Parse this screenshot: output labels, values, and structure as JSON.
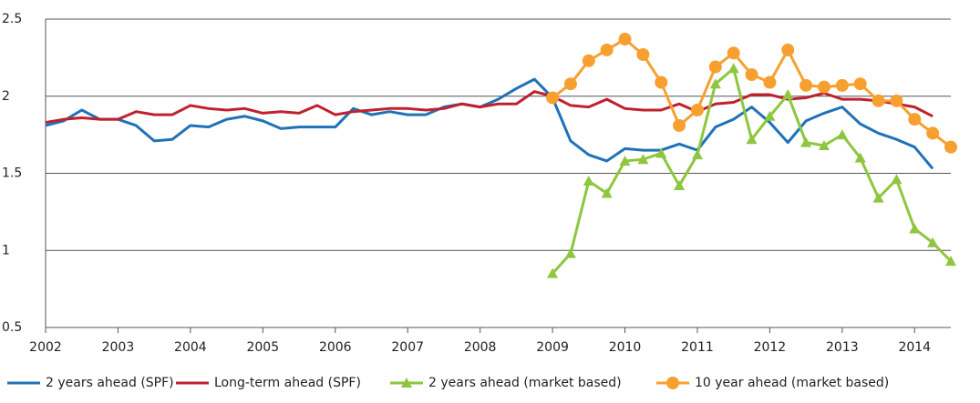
{
  "chart_data": {
    "type": "line",
    "xlim": [
      2002,
      2014.5
    ],
    "xticks": [
      2002,
      2003,
      2004,
      2005,
      2006,
      2007,
      2008,
      2009,
      2010,
      2011,
      2012,
      2013,
      2014
    ],
    "ylim": [
      0.5,
      2.5
    ],
    "yticks": [
      0.5,
      1,
      1.5,
      2,
      2.5
    ],
    "grid": true,
    "legend": "bottom",
    "series": [
      {
        "name": "2 years ahead (SPF)",
        "color": "#1f72b8",
        "marker": "none",
        "x": [
          2002,
          2002.25,
          2002.5,
          2002.75,
          2003,
          2003.25,
          2003.5,
          2003.75,
          2004,
          2004.25,
          2004.5,
          2004.75,
          2005,
          2005.25,
          2005.5,
          2005.75,
          2006,
          2006.25,
          2006.5,
          2006.75,
          2007,
          2007.25,
          2007.5,
          2007.75,
          2008,
          2008.25,
          2008.5,
          2008.75,
          2009,
          2009.25,
          2009.5,
          2009.75,
          2010,
          2010.25,
          2010.5,
          2010.75,
          2011,
          2011.25,
          2011.5,
          2011.75,
          2012,
          2012.25,
          2012.5,
          2012.75,
          2013,
          2013.25,
          2013.5,
          2013.75,
          2014,
          2014.25
        ],
        "values": [
          1.81,
          1.84,
          1.91,
          1.85,
          1.85,
          1.81,
          1.71,
          1.72,
          1.81,
          1.8,
          1.85,
          1.87,
          1.84,
          1.79,
          1.8,
          1.8,
          1.8,
          1.92,
          1.88,
          1.9,
          1.88,
          1.88,
          1.93,
          1.95,
          1.93,
          1.98,
          2.05,
          2.11,
          1.99,
          1.71,
          1.62,
          1.58,
          1.66,
          1.65,
          1.65,
          1.69,
          1.65,
          1.8,
          1.85,
          1.93,
          1.83,
          1.7,
          1.84,
          1.89,
          1.93,
          1.82,
          1.76,
          1.72,
          1.67,
          1.53
        ]
      },
      {
        "name": "Long-term ahead (SPF)",
        "color": "#c0202e",
        "marker": "none",
        "x": [
          2002,
          2002.25,
          2002.5,
          2002.75,
          2003,
          2003.25,
          2003.5,
          2003.75,
          2004,
          2004.25,
          2004.5,
          2004.75,
          2005,
          2005.25,
          2005.5,
          2005.75,
          2006,
          2006.25,
          2006.5,
          2006.75,
          2007,
          2007.25,
          2007.5,
          2007.75,
          2008,
          2008.25,
          2008.5,
          2008.75,
          2009,
          2009.25,
          2009.5,
          2009.75,
          2010,
          2010.25,
          2010.5,
          2010.75,
          2011,
          2011.25,
          2011.5,
          2011.75,
          2012,
          2012.25,
          2012.5,
          2012.75,
          2013,
          2013.25,
          2013.5,
          2013.75,
          2014,
          2014.25
        ],
        "values": [
          1.83,
          1.85,
          1.86,
          1.85,
          1.85,
          1.9,
          1.88,
          1.88,
          1.94,
          1.92,
          1.91,
          1.92,
          1.89,
          1.9,
          1.89,
          1.94,
          1.88,
          1.9,
          1.91,
          1.92,
          1.92,
          1.91,
          1.92,
          1.95,
          1.93,
          1.95,
          1.95,
          2.03,
          2.0,
          1.94,
          1.93,
          1.98,
          1.92,
          1.91,
          1.91,
          1.95,
          1.9,
          1.95,
          1.96,
          2.01,
          2.01,
          1.98,
          1.99,
          2.02,
          1.98,
          1.98,
          1.97,
          1.95,
          1.93,
          1.87
        ]
      },
      {
        "name": "2 years ahead (market based)",
        "color": "#8dc63f",
        "marker": "triangle",
        "x": [
          2009,
          2009.25,
          2009.5,
          2009.75,
          2010,
          2010.25,
          2010.5,
          2010.75,
          2011,
          2011.25,
          2011.5,
          2011.75,
          2012,
          2012.25,
          2012.5,
          2012.75,
          2013,
          2013.25,
          2013.5,
          2013.75,
          2014,
          2014.25,
          2014.5
        ],
        "values": [
          0.85,
          0.98,
          1.45,
          1.37,
          1.58,
          1.59,
          1.63,
          1.42,
          1.62,
          2.08,
          2.18,
          1.72,
          1.87,
          2.01,
          1.7,
          1.68,
          1.75,
          1.6,
          1.34,
          1.46,
          1.14,
          1.05,
          0.93
        ]
      },
      {
        "name": "10 year ahead (market based)",
        "color": "#f7a02f",
        "marker": "circle",
        "x": [
          2009,
          2009.25,
          2009.5,
          2009.75,
          2010,
          2010.25,
          2010.5,
          2010.75,
          2011,
          2011.25,
          2011.5,
          2011.75,
          2012,
          2012.25,
          2012.5,
          2012.75,
          2013,
          2013.25,
          2013.5,
          2013.75,
          2014,
          2014.25,
          2014.5
        ],
        "values": [
          1.99,
          2.08,
          2.23,
          2.3,
          2.37,
          2.27,
          2.09,
          1.81,
          1.91,
          2.19,
          2.28,
          2.14,
          2.09,
          2.3,
          2.07,
          2.06,
          2.07,
          2.08,
          1.97,
          1.97,
          1.85,
          1.76,
          1.67
        ]
      }
    ]
  }
}
